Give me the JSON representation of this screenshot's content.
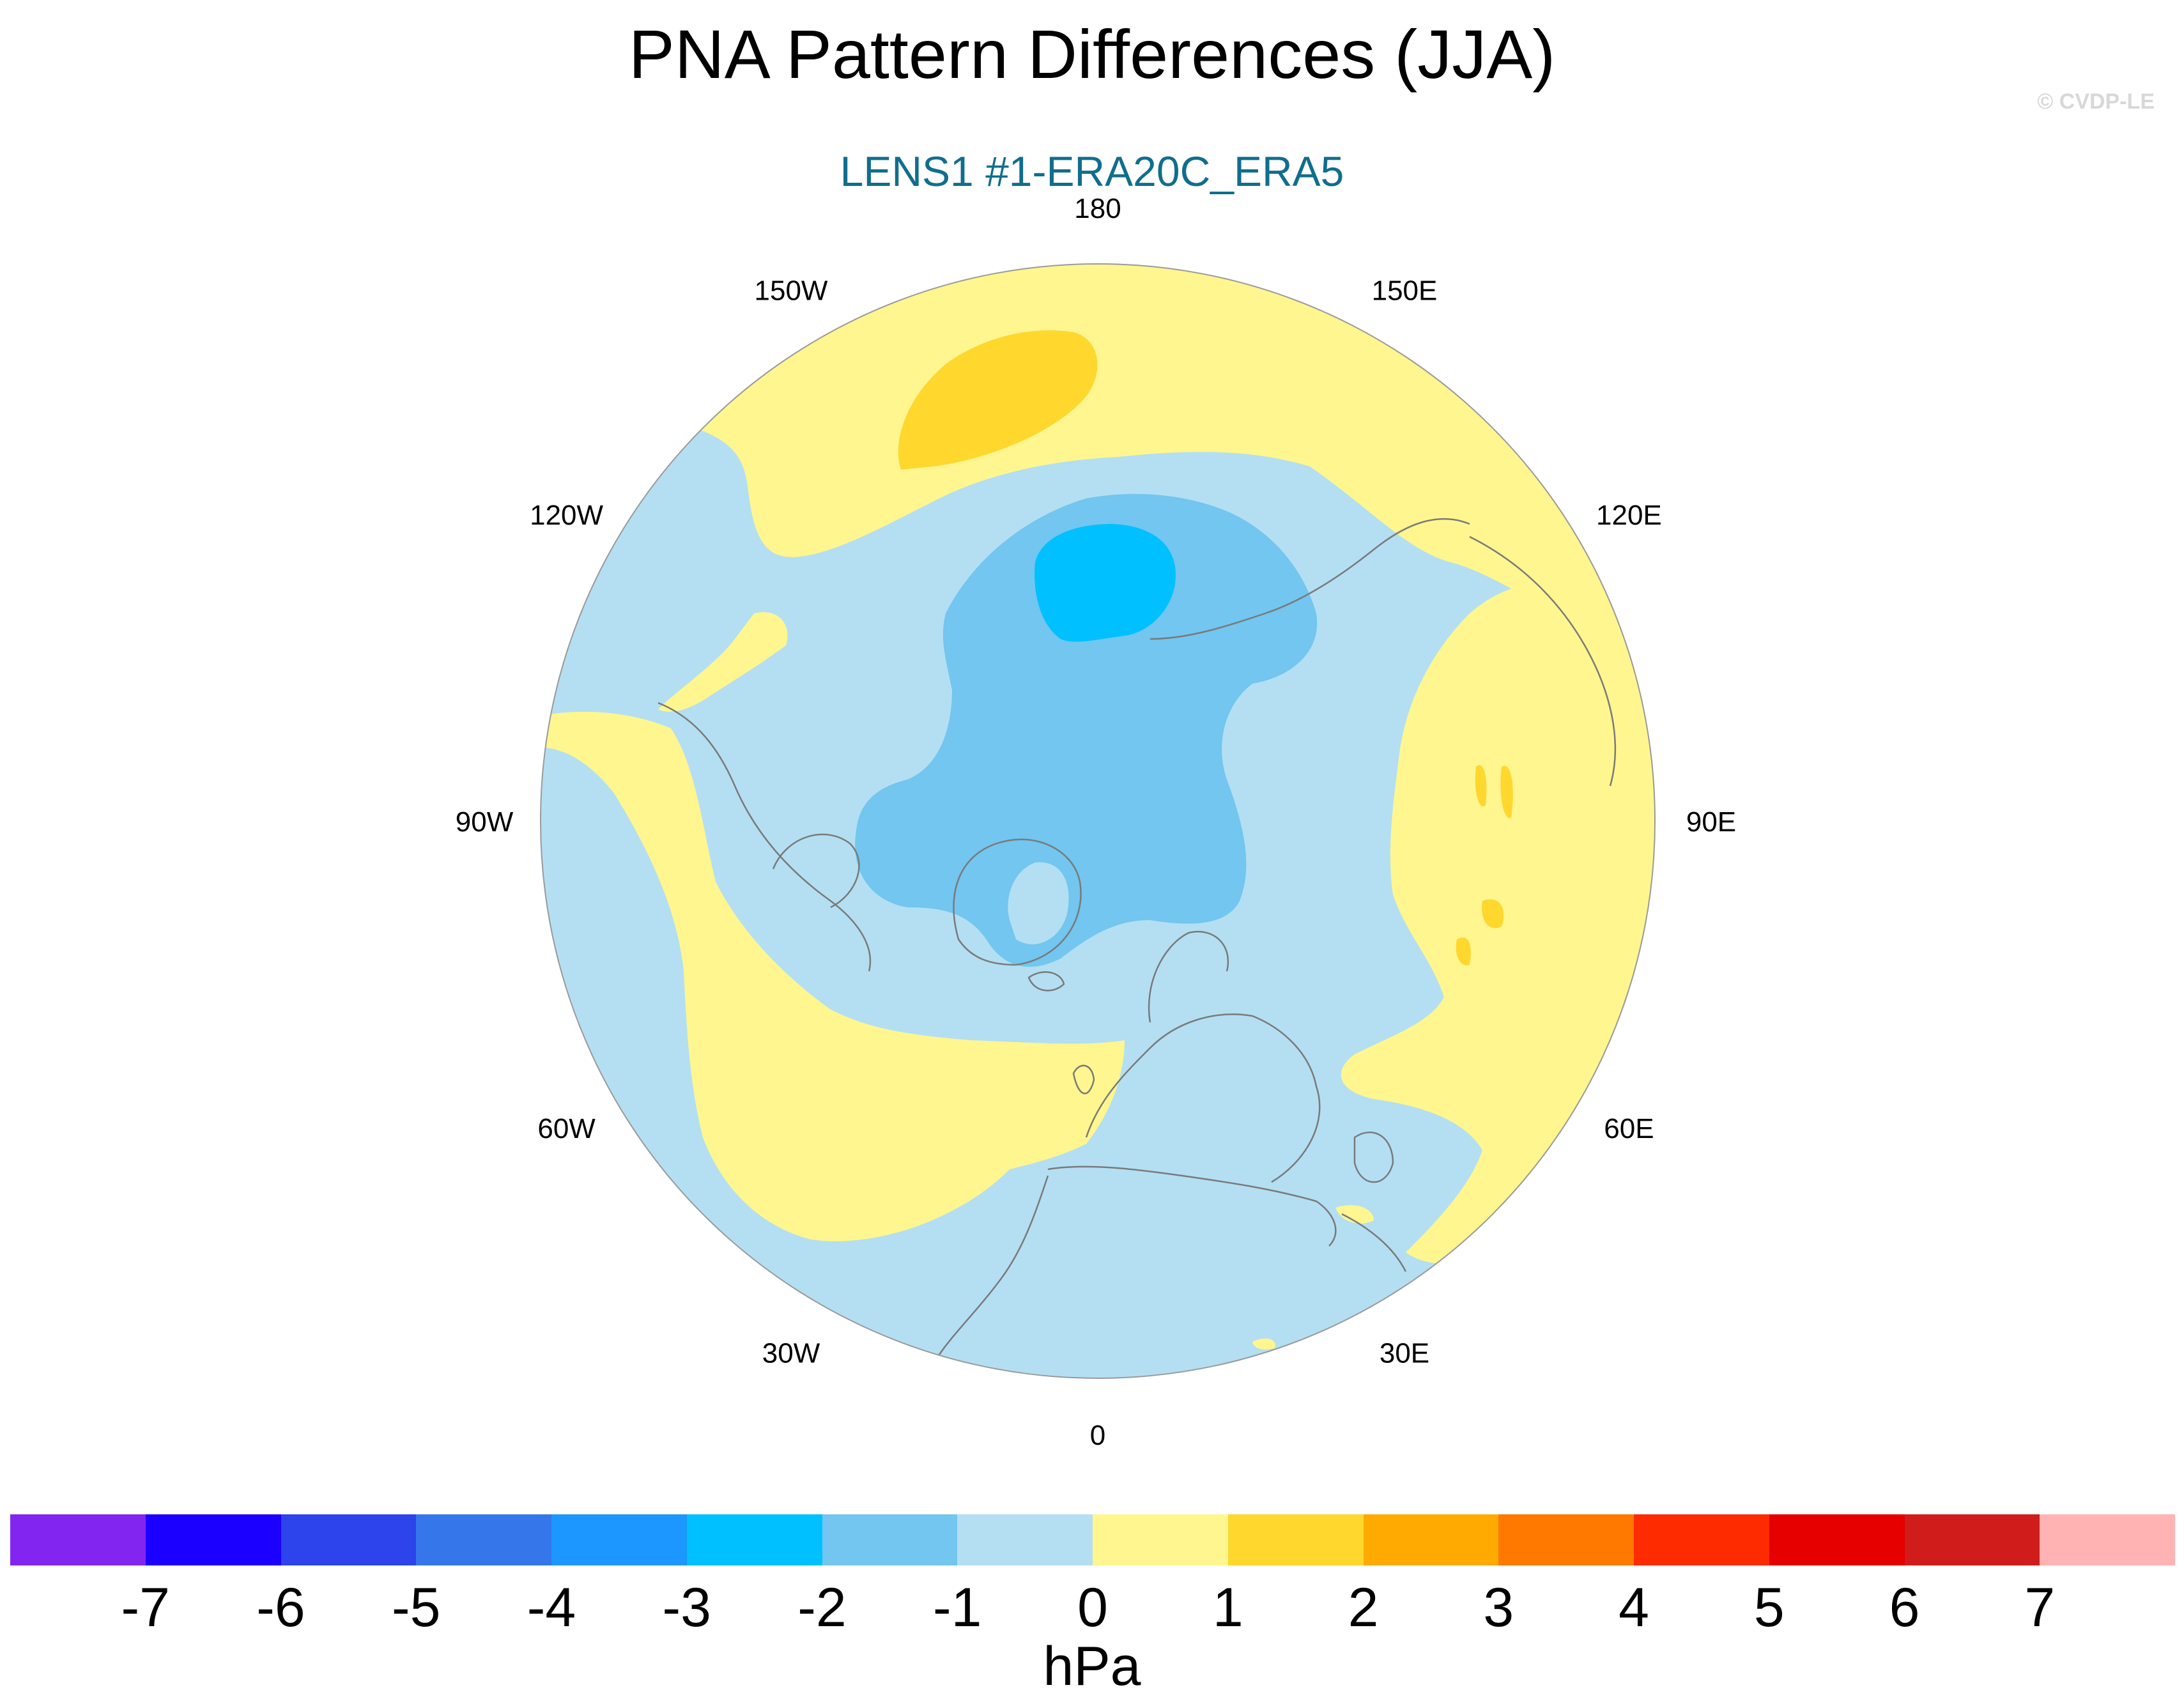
{
  "title": "PNA Pattern Differences (JJA)",
  "subtitle": "LENS1 #1-ERA20C_ERA5",
  "copyright": "© CVDP-LE",
  "colors": {
    "subtitle": "#106e8c",
    "ocean_base": "#b4dff2",
    "neg1": "#b4dff2",
    "neg2": "#72c6ef",
    "neg3": "#00c0ff",
    "pos1": "#fff68f",
    "pos2": "#ffd72d",
    "coast": "#7a7a7a"
  },
  "map": {
    "projection": "north-polar-stereographic",
    "longitude_labels": [
      "180",
      "150E",
      "120E",
      "90E",
      "60E",
      "30E",
      "0",
      "30W",
      "60W",
      "90W",
      "120W",
      "150W"
    ]
  },
  "colorbar": {
    "colors": [
      "#8325f0",
      "#1c00ff",
      "#2d43eb",
      "#3676eb",
      "#1c97ff",
      "#00c0ff",
      "#72c6ef",
      "#b4dff2",
      "#fff68f",
      "#ffd72d",
      "#ffaa00",
      "#ff7800",
      "#ff2b00",
      "#e60000",
      "#d11c1c",
      "#ffb3b3"
    ],
    "tick_labels": [
      "-7",
      "-6",
      "-5",
      "-4",
      "-3",
      "-2",
      "-1",
      "0",
      "1",
      "2",
      "3",
      "4",
      "5",
      "6",
      "7"
    ],
    "units": "hPa"
  }
}
